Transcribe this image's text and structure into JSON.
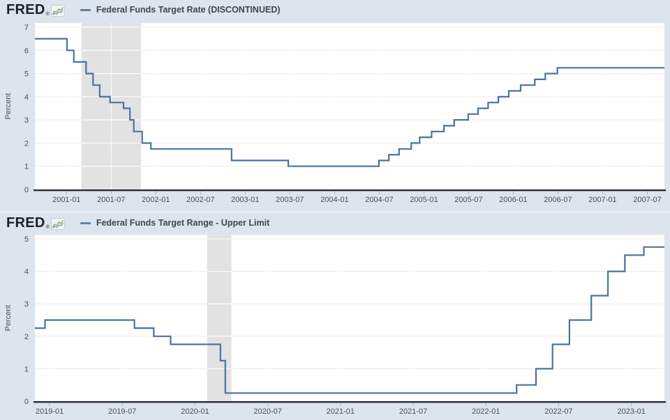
{
  "colors": {
    "page_bg": "#dce4ee",
    "plot_bg": "#ffffff",
    "grid": "#ececec",
    "grid_on_band": "#ffffff",
    "recession_band": "#e2e2e2",
    "line": "#4a72a3",
    "axis": "#23272d",
    "tick": "#a9b2bf",
    "tick_label": "#4a4f55",
    "title_text": "#3f464d",
    "logo_text": "#1d2023",
    "legend_swatch": "#64809f",
    "icon_line_green": "#84a96f",
    "icon_line_blue": "#8097ad"
  },
  "panels": [
    {
      "brand": "FRED",
      "reg_mark": "®",
      "legend_label": "Federal Funds Target Rate (DISCONTINUED)"
    },
    {
      "brand": "FRED",
      "reg_mark": "®",
      "legend_label": "Federal Funds Target Range - Upper Limit"
    }
  ],
  "chart_data": [
    {
      "type": "line",
      "title": "Federal Funds Target Rate (DISCONTINUED)",
      "xlabel": "",
      "ylabel": "Percent",
      "ylim": [
        0,
        7
      ],
      "yticks": [
        0,
        1,
        2,
        3,
        4,
        5,
        6,
        7
      ],
      "x_start": "2000-08-24",
      "x_end": "2007-09-10",
      "xticks": [
        "2001-01",
        "2001-07",
        "2002-01",
        "2002-07",
        "2003-01",
        "2003-07",
        "2004-01",
        "2004-07",
        "2005-01",
        "2005-07",
        "2006-01",
        "2006-07",
        "2007-01",
        "2007-07"
      ],
      "grid": true,
      "legend_position": "top-header",
      "recession_band": [
        "2001-03-01",
        "2001-11-01"
      ],
      "series": [
        {
          "name": "Federal Funds Target Rate (DISCONTINUED)",
          "unit": "percent",
          "steps": [
            [
              "2000-08-24",
              6.5
            ],
            [
              "2001-01-03",
              6.0
            ],
            [
              "2001-01-31",
              5.5
            ],
            [
              "2001-03-20",
              5.0
            ],
            [
              "2001-04-18",
              4.5
            ],
            [
              "2001-05-15",
              4.0
            ],
            [
              "2001-06-27",
              3.75
            ],
            [
              "2001-08-21",
              3.5
            ],
            [
              "2001-09-17",
              3.0
            ],
            [
              "2001-10-02",
              2.5
            ],
            [
              "2001-11-06",
              2.0
            ],
            [
              "2001-12-11",
              1.75
            ],
            [
              "2002-11-06",
              1.25
            ],
            [
              "2003-06-25",
              1.0
            ],
            [
              "2004-06-30",
              1.25
            ],
            [
              "2004-08-10",
              1.5
            ],
            [
              "2004-09-21",
              1.75
            ],
            [
              "2004-11-10",
              2.0
            ],
            [
              "2004-12-14",
              2.25
            ],
            [
              "2005-02-02",
              2.5
            ],
            [
              "2005-03-22",
              2.75
            ],
            [
              "2005-05-03",
              3.0
            ],
            [
              "2005-06-30",
              3.25
            ],
            [
              "2005-08-09",
              3.5
            ],
            [
              "2005-09-20",
              3.75
            ],
            [
              "2005-11-01",
              4.0
            ],
            [
              "2005-12-13",
              4.25
            ],
            [
              "2006-01-31",
              4.5
            ],
            [
              "2006-03-28",
              4.75
            ],
            [
              "2006-05-10",
              5.0
            ],
            [
              "2006-06-29",
              5.25
            ]
          ]
        }
      ]
    },
    {
      "type": "line",
      "title": "Federal Funds Target Range - Upper Limit",
      "xlabel": "",
      "ylabel": "Percent",
      "ylim": [
        0,
        5
      ],
      "yticks": [
        0,
        1,
        2,
        3,
        4,
        5
      ],
      "x_start": "2018-11-25",
      "x_end": "2023-03-23",
      "xticks": [
        "2019-01",
        "2019-07",
        "2020-01",
        "2020-07",
        "2021-01",
        "2021-07",
        "2022-01",
        "2022-07",
        "2023-01"
      ],
      "grid": true,
      "legend_position": "top-header",
      "recession_band": [
        "2020-02-01",
        "2020-04-01"
      ],
      "series": [
        {
          "name": "Federal Funds Target Range - Upper Limit",
          "unit": "percent",
          "steps": [
            [
              "2018-11-25",
              2.25
            ],
            [
              "2018-12-20",
              2.5
            ],
            [
              "2019-08-01",
              2.25
            ],
            [
              "2019-09-19",
              2.0
            ],
            [
              "2019-10-31",
              1.75
            ],
            [
              "2020-03-04",
              1.25
            ],
            [
              "2020-03-16",
              0.25
            ],
            [
              "2022-03-17",
              0.5
            ],
            [
              "2022-05-05",
              1.0
            ],
            [
              "2022-06-16",
              1.75
            ],
            [
              "2022-07-28",
              2.5
            ],
            [
              "2022-09-22",
              3.25
            ],
            [
              "2022-11-03",
              4.0
            ],
            [
              "2022-12-15",
              4.5
            ],
            [
              "2023-02-02",
              4.75
            ]
          ]
        }
      ]
    }
  ]
}
